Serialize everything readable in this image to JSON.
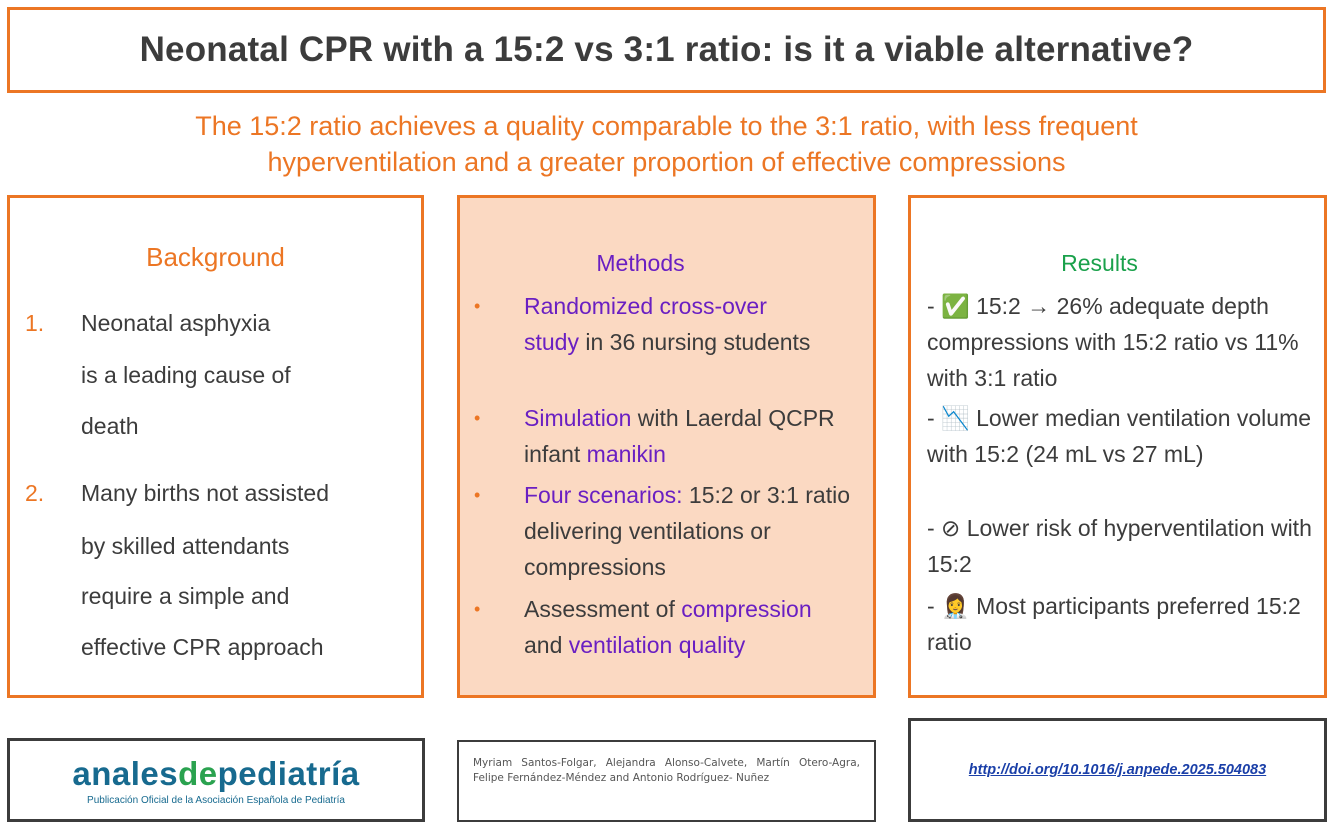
{
  "title": "Neonatal CPR with a 15:2 vs 3:1 ratio: is it a viable alternative?",
  "subtitle": {
    "line1": "The 15:2 ratio achieves a quality comparable to the 3:1 ratio, with less frequent",
    "line2": "hyperventilation and a greater proportion of effective compressions"
  },
  "background": {
    "title": "Background",
    "items": [
      {
        "num": "1.",
        "lines": [
          "Neonatal asphyxia",
          "is a leading cause of",
          "death"
        ]
      },
      {
        "num": "2.",
        "lines": [
          "Many births not assisted",
          "by skilled attendants",
          "require a simple and",
          "effective CPR approach"
        ]
      }
    ]
  },
  "methods": {
    "title": "Methods",
    "bullet": "•",
    "items": [
      {
        "hl1": "Randomized cross-over",
        "hl2": "study",
        "tx1": " in 36 nursing students"
      },
      {
        "hl1": "Simulation",
        "tx1": " with Laerdal QCPR infant ",
        "hl2": "manikin"
      },
      {
        "hl1": "Four scenarios:",
        "tx1": " 15:2 or 3:1 ratio delivering ventilations or compressions"
      },
      {
        "tx1": "Assessment of ",
        "hl1": "compression",
        "tx2": " and ",
        "hl2": "ventilation quality"
      }
    ]
  },
  "results": {
    "title": "Results",
    "items": [
      "- ✅ 15:2 → 26% adequate depth compressions with 15:2 ratio vs 11% with 3:1 ratio",
      "- 📉 Lower median ventilation volume with 15:2 (24 mL vs 27 mL)",
      "- ⊘ Lower risk of hyperventilation with 15:2",
      "- 👩‍⚕️ Most participants preferred 15:2 ratio"
    ]
  },
  "logo": {
    "part1": "anales",
    "part2": "de",
    "part3": "pediatría",
    "subtitle": "Publicación Oficial de la Asociación Española de Pediatría"
  },
  "authors": "Myriam Santos-Folgar, Alejandra Alonso-Calvete, Martín Otero-Agra, Felipe Fernández-Méndez and Antonio Rodríguez- Nuñez",
  "doi": "http://doi.org/10.1016/j.anpede.2025.504083",
  "colors": {
    "accent": "#ec7624",
    "highlight": "#6a1fc2",
    "results": "#1aa14b",
    "methods_bg": "#fbd9c2",
    "logo_blue": "#176a8f",
    "logo_green": "#2aa24f"
  }
}
